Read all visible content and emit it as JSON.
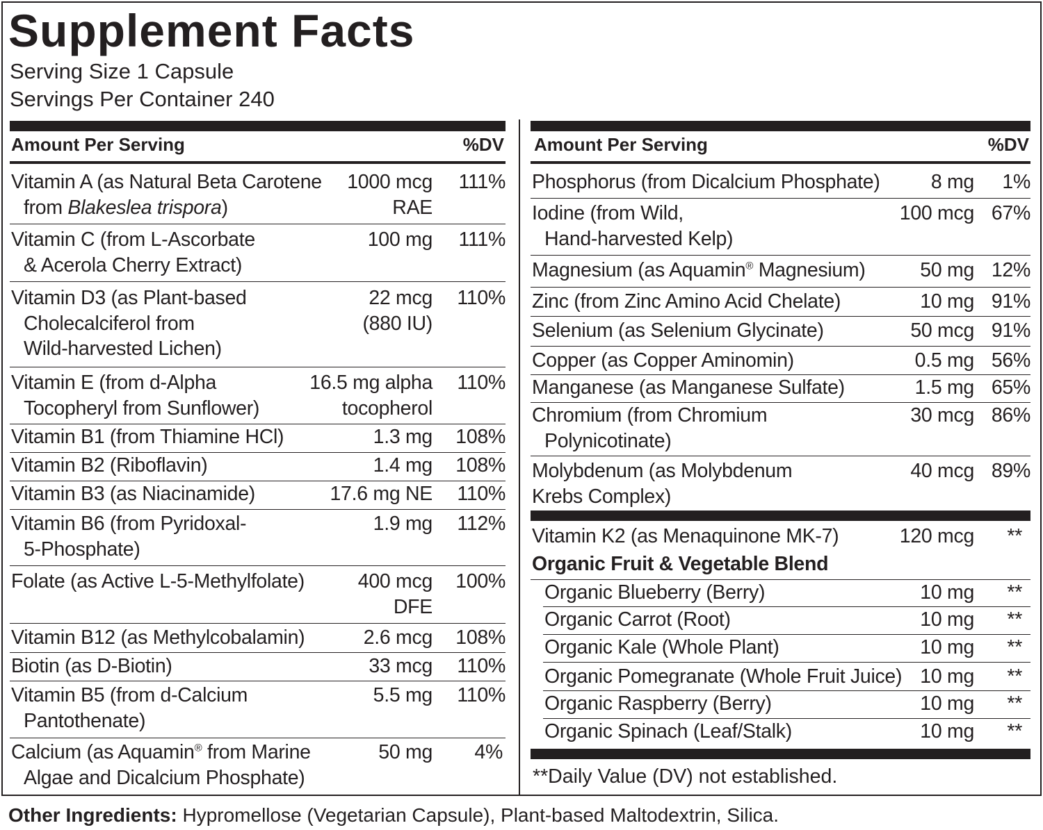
{
  "title": "Supplement Facts",
  "serving_size": "Serving Size 1 Capsule",
  "servings_per_container": "Servings Per Container 240",
  "header": {
    "amount_label": "Amount Per Serving",
    "dv_label": "%DV"
  },
  "left_rows": [
    {
      "name_l1_a": "Vitamin A (as Natural Beta Carotene",
      "name_l2_a": "from ",
      "name_l2_i": "Blakeslea trispora",
      "name_l2_b": ")",
      "amt_l1": "1000 mcg",
      "amt_l2": "RAE",
      "dv": "111%"
    },
    {
      "name_l1": "Vitamin C (from L-Ascorbate",
      "name_l2": "& Acerola Cherry Extract)",
      "amt_l1": "100 mg",
      "dv": "111%"
    },
    {
      "name_l1": "Vitamin D3 (as Plant-based",
      "name_l2": "Cholecalciferol from",
      "name_l3": "Wild-harvested Lichen)",
      "amt_l1": "22 mcg",
      "amt_l2": "(880 IU)",
      "dv": "110%"
    },
    {
      "name_l1": "Vitamin E (from d-Alpha",
      "name_l2": "Tocopheryl from Sunflower)",
      "amt_l1": "16.5 mg alpha",
      "amt_l2": "tocopherol",
      "dv": "110%"
    },
    {
      "name_l1": "Vitamin B1 (from Thiamine HCl)",
      "amt_l1": "1.3 mg",
      "dv": "108%"
    },
    {
      "name_l1": "Vitamin B2 (Riboflavin)",
      "amt_l1": "1.4 mg",
      "dv": "108%"
    },
    {
      "name_l1": "Vitamin B3 (as Niacinamide)",
      "amt_l1": "17.6 mg NE",
      "dv": "110%"
    },
    {
      "name_l1": "Vitamin B6 (from Pyridoxal-",
      "name_l2": "5-Phosphate)",
      "amt_l1": "1.9 mg",
      "dv": "112%"
    },
    {
      "name_l1": "Folate (as Active L-5-Methylfolate)",
      "amt_l1": "400 mcg",
      "amt_l2": "DFE",
      "dv": "100%"
    },
    {
      "name_l1": "Vitamin B12 (as Methylcobalamin)",
      "amt_l1": "2.6 mcg",
      "dv": "108%"
    },
    {
      "name_l1": "Biotin (as D-Biotin)",
      "amt_l1": "33 mcg",
      "dv": "110%"
    },
    {
      "name_l1": "Vitamin B5 (from d-Calcium",
      "name_l2": "Pantothenate)",
      "amt_l1": "5.5 mg",
      "dv": "110%"
    },
    {
      "name_l1_a": "Calcium (as Aquamin",
      "name_l1_sup": "®",
      "name_l1_b": " from Marine",
      "name_l2": "Algae and Dicalcium Phosphate)",
      "amt_l1": "50 mg",
      "dv": "4%"
    }
  ],
  "right_rows": [
    {
      "name_l1": "Phosphorus (from Dicalcium Phosphate)",
      "amt_l1": "8 mg",
      "dv": "1%"
    },
    {
      "name_l1": "Iodine (from Wild,",
      "name_l2": "Hand-harvested Kelp)",
      "amt_l1": "100 mcg",
      "dv": "67%"
    },
    {
      "name_l1_a": "Magnesium (as Aquamin",
      "name_l1_sup": "®",
      "name_l1_b": " Magnesium)",
      "amt_l1": "50 mg",
      "dv": "12%"
    },
    {
      "name_l1": "Zinc (from Zinc Amino Acid Chelate)",
      "amt_l1": "10 mg",
      "dv": "91%"
    },
    {
      "name_l1": "Selenium (as Selenium Glycinate)",
      "amt_l1": "50 mcg",
      "dv": "91%"
    },
    {
      "name_l1": "Copper (as Copper Aminomin)",
      "amt_l1": "0.5 mg",
      "dv": "56%"
    },
    {
      "name_l1": "Manganese (as Manganese Sulfate)",
      "amt_l1": "1.5 mg",
      "dv": "65%"
    },
    {
      "name_l1": "Chromium (from Chromium",
      "name_l2": "Polynicotinate)",
      "amt_l1": "30 mcg",
      "dv": "86%"
    },
    {
      "name_l1": "Molybdenum (as Molybdenum",
      "name_l2": "Krebs Complex)",
      "amt_l1": "40 mcg",
      "dv": "89%"
    }
  ],
  "k2": {
    "name": "Vitamin K2 (as Menaquinone MK-7)",
    "amt": "120 mcg",
    "dv": "**"
  },
  "blend": {
    "title": "Organic Fruit & Vegetable Blend",
    "items": [
      {
        "name": "Organic Blueberry (Berry)",
        "amt": "10 mg",
        "dv": "**"
      },
      {
        "name": "Organic Carrot (Root)",
        "amt": "10 mg",
        "dv": "**"
      },
      {
        "name": "Organic Kale (Whole Plant)",
        "amt": "10 mg",
        "dv": "**"
      },
      {
        "name": "Organic Pomegranate (Whole Fruit Juice)",
        "amt": "10 mg",
        "dv": "**"
      },
      {
        "name": "Organic Raspberry (Berry)",
        "amt": "10 mg",
        "dv": "**"
      },
      {
        "name": "Organic  Spinach (Leaf/Stalk)",
        "amt": "10 mg",
        "dv": "**"
      }
    ]
  },
  "footnote": "**Daily Value (DV) not established.",
  "other_ingredients": {
    "label": "Other Ingredients:",
    "text": " Hypromellose (Vegetarian Capsule), Plant-based Maltodextrin, Silica."
  }
}
